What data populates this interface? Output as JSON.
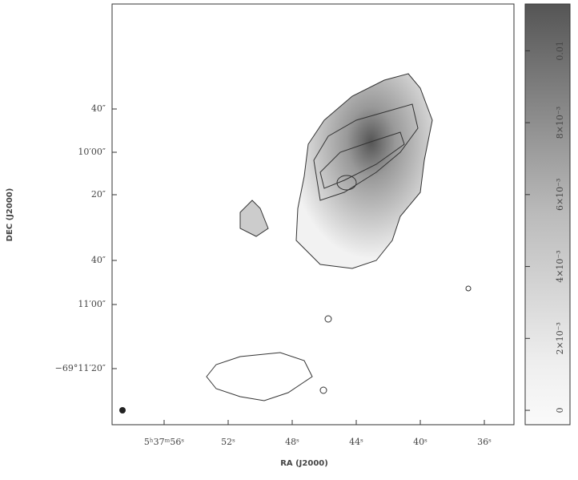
{
  "figure": {
    "x_label": "RA (J2000)",
    "y_label": "DEC (J2000)",
    "x_ticks": [
      "5ʰ37ᵐ56ˢ",
      "52ˢ",
      "48ˢ",
      "44ˢ",
      "40ˢ",
      "36ˢ"
    ],
    "y_ticks": [
      "40″",
      "10′00″",
      "20″",
      "40″",
      "11′00″",
      "−69°11′20″"
    ],
    "colorbar": {
      "lim": [
        -0.0004,
        0.0113
      ],
      "ticks": [
        0,
        {
          "value": 0.002,
          "label": "2×10⁻³"
        },
        {
          "value": 0.004,
          "label": "4×10⁻³"
        },
        {
          "value": 0.006,
          "label": "6×10⁻³"
        },
        {
          "value": 0.008,
          "label": "8×10⁻³"
        },
        0.01
      ]
    }
  }
}
